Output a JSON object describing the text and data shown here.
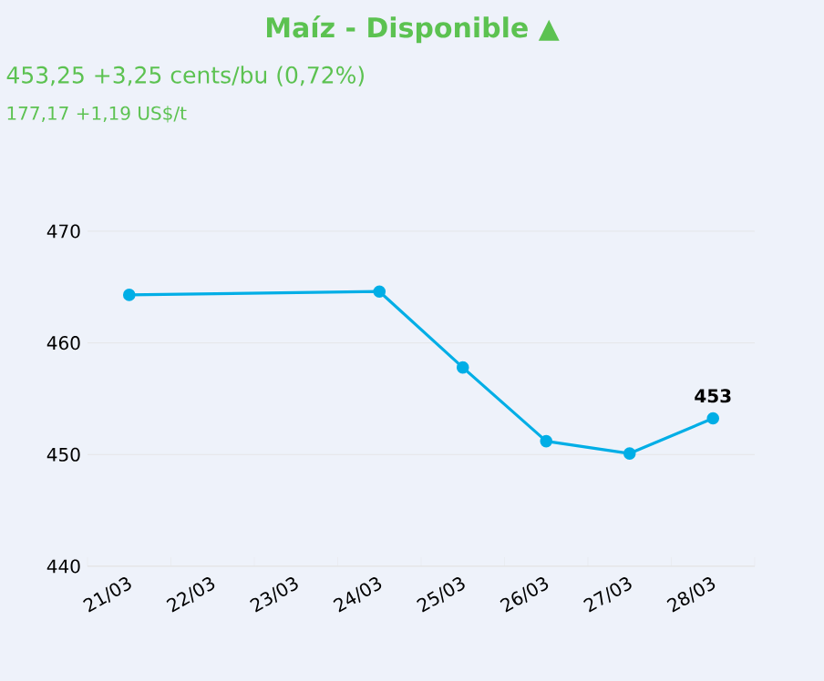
{
  "chart_data": {
    "type": "line",
    "title": "Maíz - Disponible ▲",
    "subtitle": "453,25 +3,25 cents/bu (0,72%)",
    "annotations": [
      "177,17 +1,19 US$/t"
    ],
    "categories": [
      "21/03",
      "22/03",
      "23/03",
      "24/03",
      "25/03",
      "26/03",
      "27/03",
      "28/03"
    ],
    "series": [
      {
        "color": "#00aee6",
        "values": [
          464.3,
          null,
          null,
          464.6,
          457.8,
          451.2,
          450.1,
          453.25
        ],
        "value_labels": [
          null,
          null,
          null,
          null,
          null,
          null,
          null,
          "453"
        ]
      }
    ],
    "ylim": [
      440,
      470
    ],
    "yticks": [
      440,
      450,
      460,
      470
    ],
    "grid": "y",
    "marker": "circle",
    "line_style": "solid"
  }
}
